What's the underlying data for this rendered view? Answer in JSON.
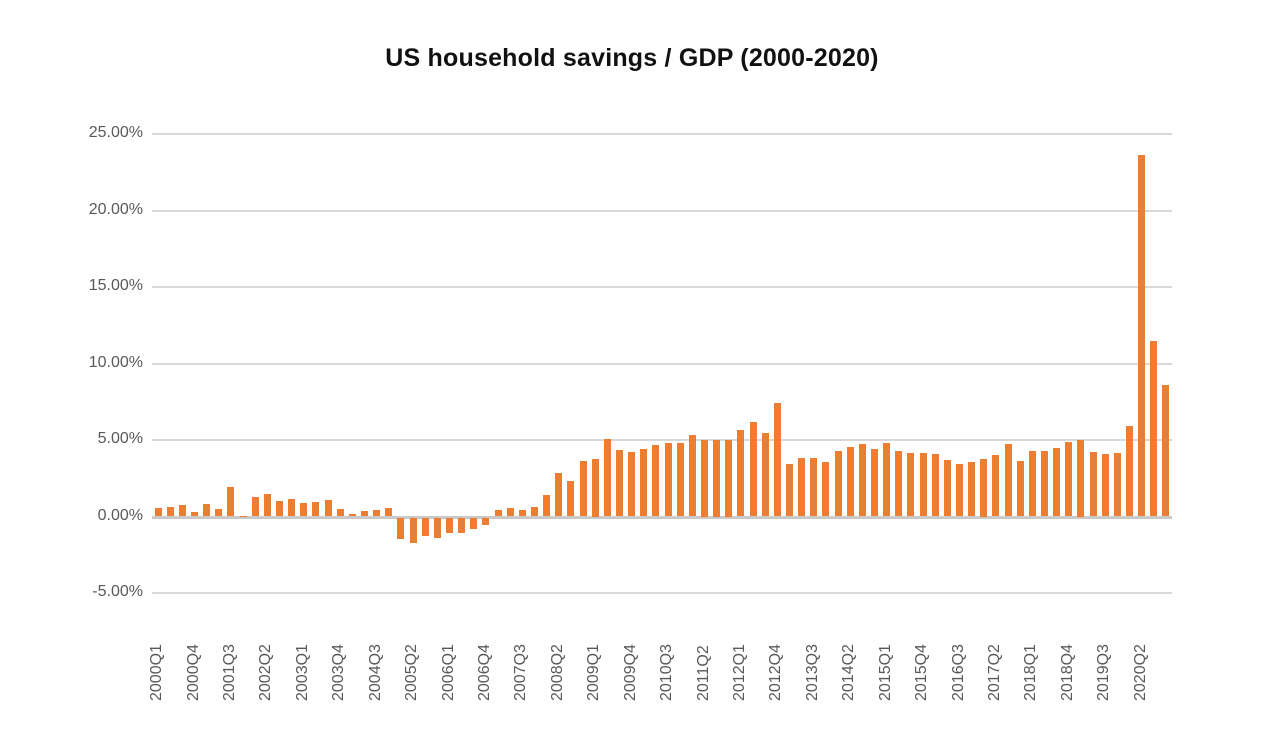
{
  "chart_data": {
    "type": "bar",
    "title": "US household savings / GDP (2000-2020)",
    "legend_position": "none",
    "grid": true,
    "ylim": [
      -5,
      25
    ],
    "x_tick_every": 3,
    "bar_color": "#ED7D31",
    "gridline_color": "#D9D9D9",
    "axis_line_color": "#C9C9C9",
    "tick_label_color": "#595959",
    "title_color": "#111111",
    "y_ticks": [
      {
        "value": 25,
        "label": "25.00%"
      },
      {
        "value": 20,
        "label": "20.00%"
      },
      {
        "value": 15,
        "label": "15.00%"
      },
      {
        "value": 10,
        "label": "10.00%"
      },
      {
        "value": 5,
        "label": "5.00%"
      },
      {
        "value": 0,
        "label": "0.00%"
      },
      {
        "value": -5,
        "label": "-5.00%"
      }
    ],
    "categories": [
      "2000Q1",
      "2000Q2",
      "2000Q3",
      "2000Q4",
      "2001Q1",
      "2001Q2",
      "2001Q3",
      "2001Q4",
      "2002Q1",
      "2002Q2",
      "2002Q3",
      "2002Q4",
      "2003Q1",
      "2003Q2",
      "2003Q3",
      "2003Q4",
      "2004Q1",
      "2004Q2",
      "2004Q3",
      "2004Q4",
      "2005Q1",
      "2005Q2",
      "2005Q3",
      "2005Q4",
      "2006Q1",
      "2006Q2",
      "2006Q3",
      "2006Q4",
      "2007Q1",
      "2007Q2",
      "2007Q3",
      "2007Q4",
      "2008Q1",
      "2008Q2",
      "2008Q3",
      "2008Q4",
      "2009Q1",
      "2009Q2",
      "2009Q3",
      "2009Q4",
      "2010Q1",
      "2010Q2",
      "2010Q3",
      "2010Q4",
      "2011Q1",
      "2011Q2",
      "2011Q3",
      "2011Q4",
      "2012Q1",
      "2012Q2",
      "2012Q3",
      "2012Q4",
      "2013Q1",
      "2013Q2",
      "2013Q3",
      "2013Q4",
      "2014Q1",
      "2014Q2",
      "2014Q3",
      "2014Q4",
      "2015Q1",
      "2015Q2",
      "2015Q3",
      "2015Q4",
      "2016Q1",
      "2016Q2",
      "2016Q3",
      "2016Q4",
      "2017Q1",
      "2017Q2",
      "2017Q3",
      "2017Q4",
      "2018Q1",
      "2018Q2",
      "2018Q3",
      "2018Q4",
      "2019Q1",
      "2019Q2",
      "2019Q3",
      "2019Q4",
      "2020Q1",
      "2020Q2",
      "2020Q3",
      "2020Q4"
    ],
    "values": [
      0.55,
      0.65,
      0.75,
      0.3,
      0.8,
      0.5,
      1.95,
      0.05,
      1.3,
      1.45,
      1.0,
      1.15,
      0.85,
      0.95,
      1.05,
      0.5,
      0.15,
      0.35,
      0.4,
      0.55,
      -1.4,
      -1.65,
      -1.2,
      -1.3,
      -0.95,
      -1.0,
      -0.7,
      -0.45,
      0.4,
      0.55,
      0.45,
      0.65,
      1.4,
      2.85,
      2.3,
      3.6,
      3.75,
      5.05,
      4.35,
      4.2,
      4.4,
      4.65,
      4.8,
      4.8,
      5.35,
      5.0,
      5.0,
      5.0,
      5.65,
      6.2,
      5.45,
      7.45,
      3.4,
      3.85,
      3.8,
      3.55,
      4.3,
      4.55,
      4.75,
      4.4,
      4.8,
      4.3,
      4.15,
      4.15,
      4.1,
      3.7,
      3.45,
      3.55,
      3.75,
      4.0,
      4.75,
      3.65,
      4.25,
      4.3,
      4.5,
      4.9,
      5.0,
      4.2,
      4.1,
      4.15,
      5.9,
      23.6,
      11.5,
      8.6
    ]
  }
}
